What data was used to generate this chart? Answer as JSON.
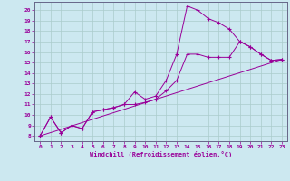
{
  "xlabel": "Windchill (Refroidissement éolien,°C)",
  "bg_color": "#cce8f0",
  "line_color": "#990099",
  "grid_color": "#aacccc",
  "spine_color": "#666688",
  "xlim": [
    -0.5,
    23.5
  ],
  "ylim": [
    7.5,
    20.8
  ],
  "xticks": [
    0,
    1,
    2,
    3,
    4,
    5,
    6,
    7,
    8,
    9,
    10,
    11,
    12,
    13,
    14,
    15,
    16,
    17,
    18,
    19,
    20,
    21,
    22,
    23
  ],
  "yticks": [
    8,
    9,
    10,
    11,
    12,
    13,
    14,
    15,
    16,
    17,
    18,
    19,
    20
  ],
  "line1_x": [
    0,
    1,
    2,
    3,
    4,
    5,
    6,
    7,
    8,
    9,
    10,
    11,
    12,
    13,
    14,
    15,
    16,
    17,
    18,
    19,
    20,
    21,
    22,
    23
  ],
  "line1_y": [
    8.0,
    9.8,
    8.3,
    9.0,
    8.7,
    10.3,
    10.5,
    10.7,
    11.0,
    12.2,
    11.5,
    11.8,
    13.3,
    15.8,
    20.4,
    20.0,
    19.2,
    18.8,
    18.2,
    17.0,
    16.5,
    15.8,
    15.2,
    15.3
  ],
  "line2_x": [
    0,
    1,
    2,
    3,
    4,
    5,
    6,
    7,
    8,
    9,
    10,
    11,
    12,
    13,
    14,
    15,
    16,
    17,
    18,
    19,
    20,
    21,
    22,
    23
  ],
  "line2_y": [
    8.0,
    9.8,
    8.3,
    9.0,
    8.7,
    10.3,
    10.5,
    10.7,
    11.0,
    11.0,
    11.2,
    11.5,
    12.3,
    13.3,
    15.8,
    15.8,
    15.5,
    15.5,
    15.5,
    17.0,
    16.5,
    15.8,
    15.2,
    15.3
  ],
  "line3_x": [
    0,
    23
  ],
  "line3_y": [
    8.0,
    15.3
  ]
}
